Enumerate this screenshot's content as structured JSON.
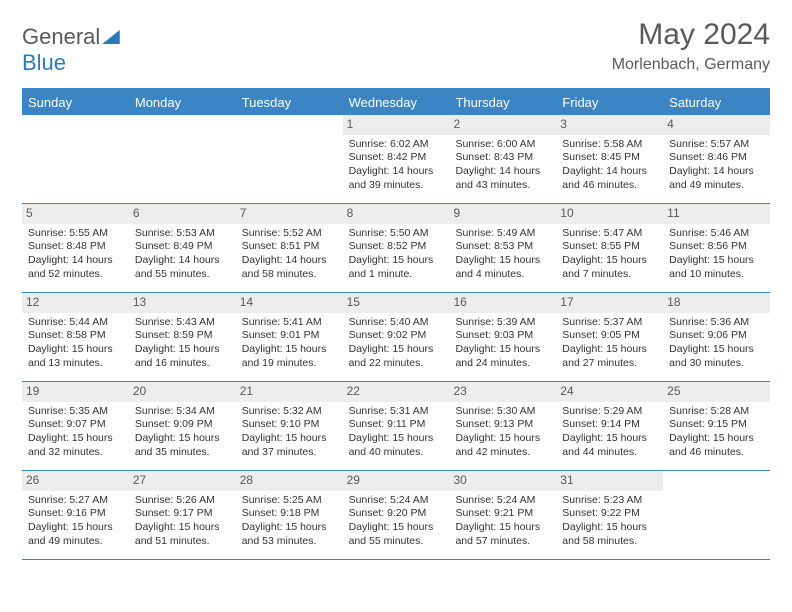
{
  "logo": {
    "part1": "General",
    "part2": "Blue"
  },
  "title": "May 2024",
  "location": "Morlenbach, Germany",
  "dayHeaders": [
    "Sunday",
    "Monday",
    "Tuesday",
    "Wednesday",
    "Thursday",
    "Friday",
    "Saturday"
  ],
  "colors": {
    "header_bg": "#3b85c4",
    "daynum_bg": "#ededed",
    "text": "#333333",
    "title_text": "#5a5a5a",
    "logo_blue": "#2b7abf"
  },
  "weeks": [
    [
      {
        "num": "",
        "sunrise": "",
        "sunset": "",
        "daylight": ""
      },
      {
        "num": "",
        "sunrise": "",
        "sunset": "",
        "daylight": ""
      },
      {
        "num": "",
        "sunrise": "",
        "sunset": "",
        "daylight": ""
      },
      {
        "num": "1",
        "sunrise": "Sunrise: 6:02 AM",
        "sunset": "Sunset: 8:42 PM",
        "daylight": "Daylight: 14 hours and 39 minutes."
      },
      {
        "num": "2",
        "sunrise": "Sunrise: 6:00 AM",
        "sunset": "Sunset: 8:43 PM",
        "daylight": "Daylight: 14 hours and 43 minutes."
      },
      {
        "num": "3",
        "sunrise": "Sunrise: 5:58 AM",
        "sunset": "Sunset: 8:45 PM",
        "daylight": "Daylight: 14 hours and 46 minutes."
      },
      {
        "num": "4",
        "sunrise": "Sunrise: 5:57 AM",
        "sunset": "Sunset: 8:46 PM",
        "daylight": "Daylight: 14 hours and 49 minutes."
      }
    ],
    [
      {
        "num": "5",
        "sunrise": "Sunrise: 5:55 AM",
        "sunset": "Sunset: 8:48 PM",
        "daylight": "Daylight: 14 hours and 52 minutes."
      },
      {
        "num": "6",
        "sunrise": "Sunrise: 5:53 AM",
        "sunset": "Sunset: 8:49 PM",
        "daylight": "Daylight: 14 hours and 55 minutes."
      },
      {
        "num": "7",
        "sunrise": "Sunrise: 5:52 AM",
        "sunset": "Sunset: 8:51 PM",
        "daylight": "Daylight: 14 hours and 58 minutes."
      },
      {
        "num": "8",
        "sunrise": "Sunrise: 5:50 AM",
        "sunset": "Sunset: 8:52 PM",
        "daylight": "Daylight: 15 hours and 1 minute."
      },
      {
        "num": "9",
        "sunrise": "Sunrise: 5:49 AM",
        "sunset": "Sunset: 8:53 PM",
        "daylight": "Daylight: 15 hours and 4 minutes."
      },
      {
        "num": "10",
        "sunrise": "Sunrise: 5:47 AM",
        "sunset": "Sunset: 8:55 PM",
        "daylight": "Daylight: 15 hours and 7 minutes."
      },
      {
        "num": "11",
        "sunrise": "Sunrise: 5:46 AM",
        "sunset": "Sunset: 8:56 PM",
        "daylight": "Daylight: 15 hours and 10 minutes."
      }
    ],
    [
      {
        "num": "12",
        "sunrise": "Sunrise: 5:44 AM",
        "sunset": "Sunset: 8:58 PM",
        "daylight": "Daylight: 15 hours and 13 minutes."
      },
      {
        "num": "13",
        "sunrise": "Sunrise: 5:43 AM",
        "sunset": "Sunset: 8:59 PM",
        "daylight": "Daylight: 15 hours and 16 minutes."
      },
      {
        "num": "14",
        "sunrise": "Sunrise: 5:41 AM",
        "sunset": "Sunset: 9:01 PM",
        "daylight": "Daylight: 15 hours and 19 minutes."
      },
      {
        "num": "15",
        "sunrise": "Sunrise: 5:40 AM",
        "sunset": "Sunset: 9:02 PM",
        "daylight": "Daylight: 15 hours and 22 minutes."
      },
      {
        "num": "16",
        "sunrise": "Sunrise: 5:39 AM",
        "sunset": "Sunset: 9:03 PM",
        "daylight": "Daylight: 15 hours and 24 minutes."
      },
      {
        "num": "17",
        "sunrise": "Sunrise: 5:37 AM",
        "sunset": "Sunset: 9:05 PM",
        "daylight": "Daylight: 15 hours and 27 minutes."
      },
      {
        "num": "18",
        "sunrise": "Sunrise: 5:36 AM",
        "sunset": "Sunset: 9:06 PM",
        "daylight": "Daylight: 15 hours and 30 minutes."
      }
    ],
    [
      {
        "num": "19",
        "sunrise": "Sunrise: 5:35 AM",
        "sunset": "Sunset: 9:07 PM",
        "daylight": "Daylight: 15 hours and 32 minutes."
      },
      {
        "num": "20",
        "sunrise": "Sunrise: 5:34 AM",
        "sunset": "Sunset: 9:09 PM",
        "daylight": "Daylight: 15 hours and 35 minutes."
      },
      {
        "num": "21",
        "sunrise": "Sunrise: 5:32 AM",
        "sunset": "Sunset: 9:10 PM",
        "daylight": "Daylight: 15 hours and 37 minutes."
      },
      {
        "num": "22",
        "sunrise": "Sunrise: 5:31 AM",
        "sunset": "Sunset: 9:11 PM",
        "daylight": "Daylight: 15 hours and 40 minutes."
      },
      {
        "num": "23",
        "sunrise": "Sunrise: 5:30 AM",
        "sunset": "Sunset: 9:13 PM",
        "daylight": "Daylight: 15 hours and 42 minutes."
      },
      {
        "num": "24",
        "sunrise": "Sunrise: 5:29 AM",
        "sunset": "Sunset: 9:14 PM",
        "daylight": "Daylight: 15 hours and 44 minutes."
      },
      {
        "num": "25",
        "sunrise": "Sunrise: 5:28 AM",
        "sunset": "Sunset: 9:15 PM",
        "daylight": "Daylight: 15 hours and 46 minutes."
      }
    ],
    [
      {
        "num": "26",
        "sunrise": "Sunrise: 5:27 AM",
        "sunset": "Sunset: 9:16 PM",
        "daylight": "Daylight: 15 hours and 49 minutes."
      },
      {
        "num": "27",
        "sunrise": "Sunrise: 5:26 AM",
        "sunset": "Sunset: 9:17 PM",
        "daylight": "Daylight: 15 hours and 51 minutes."
      },
      {
        "num": "28",
        "sunrise": "Sunrise: 5:25 AM",
        "sunset": "Sunset: 9:18 PM",
        "daylight": "Daylight: 15 hours and 53 minutes."
      },
      {
        "num": "29",
        "sunrise": "Sunrise: 5:24 AM",
        "sunset": "Sunset: 9:20 PM",
        "daylight": "Daylight: 15 hours and 55 minutes."
      },
      {
        "num": "30",
        "sunrise": "Sunrise: 5:24 AM",
        "sunset": "Sunset: 9:21 PM",
        "daylight": "Daylight: 15 hours and 57 minutes."
      },
      {
        "num": "31",
        "sunrise": "Sunrise: 5:23 AM",
        "sunset": "Sunset: 9:22 PM",
        "daylight": "Daylight: 15 hours and 58 minutes."
      },
      {
        "num": "",
        "sunrise": "",
        "sunset": "",
        "daylight": ""
      }
    ]
  ]
}
